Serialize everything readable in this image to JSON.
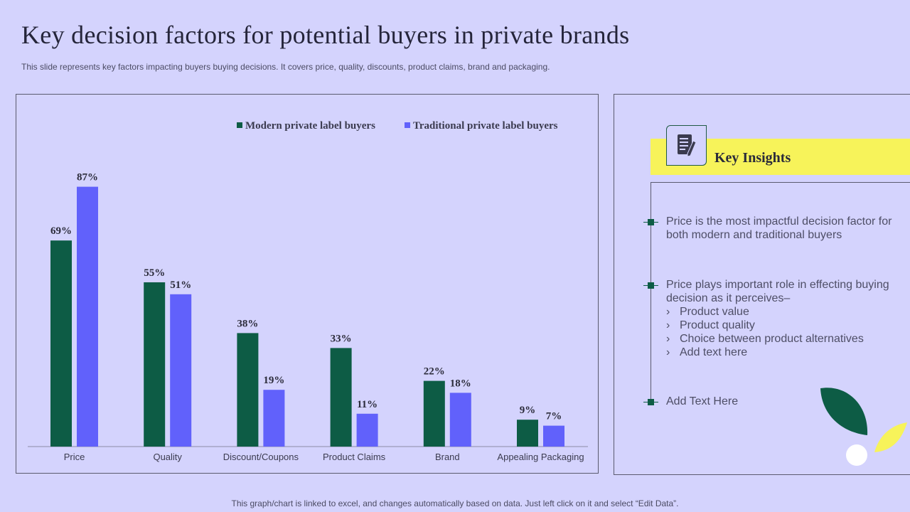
{
  "slide": {
    "title": "Key decision factors for potential buyers in private brands",
    "subtitle": "This slide represents key factors impacting buyers buying decisions. It covers price, quality, discounts, product claims, brand and packaging.",
    "footer": "This graph/chart is linked to excel, and changes automatically based on data. Just left click on it and select “Edit Data”."
  },
  "colors": {
    "background": "#d4d3fd",
    "modern": "#0d5c45",
    "traditional": "#6161fb",
    "banner": "#f7f35a"
  },
  "chart_data": {
    "type": "bar",
    "title": "",
    "xlabel": "",
    "ylabel": "",
    "ylim": [
      0,
      100
    ],
    "grid": false,
    "legend": "top-right",
    "categories": [
      "Price",
      "Quality",
      "Discount/Coupons",
      "Product Claims",
      "Brand",
      "Appealing Packaging"
    ],
    "series": [
      {
        "name": "Modern private label buyers",
        "values": [
          69,
          55,
          38,
          33,
          22,
          9
        ],
        "labels": [
          "69%",
          "55%",
          "38%",
          "33%",
          "22%",
          "9%"
        ]
      },
      {
        "name": "Traditional private label buyers",
        "values": [
          87,
          51,
          19,
          11,
          18,
          7
        ],
        "labels": [
          "87%",
          "51%",
          "19%",
          "11%",
          "18%",
          "7%"
        ]
      }
    ]
  },
  "insights": {
    "heading": "Key Insights",
    "icon": "document-pen-icon",
    "points": [
      {
        "text": "Price is the most impactful decision factor for both modern and traditional buyers"
      },
      {
        "text": "Price plays important role in effecting buying decision as it perceives–",
        "sub": [
          "Product value",
          "Product quality",
          "Choice between product alternatives",
          "Add text here"
        ]
      },
      {
        "text": "Add Text Here"
      }
    ]
  }
}
